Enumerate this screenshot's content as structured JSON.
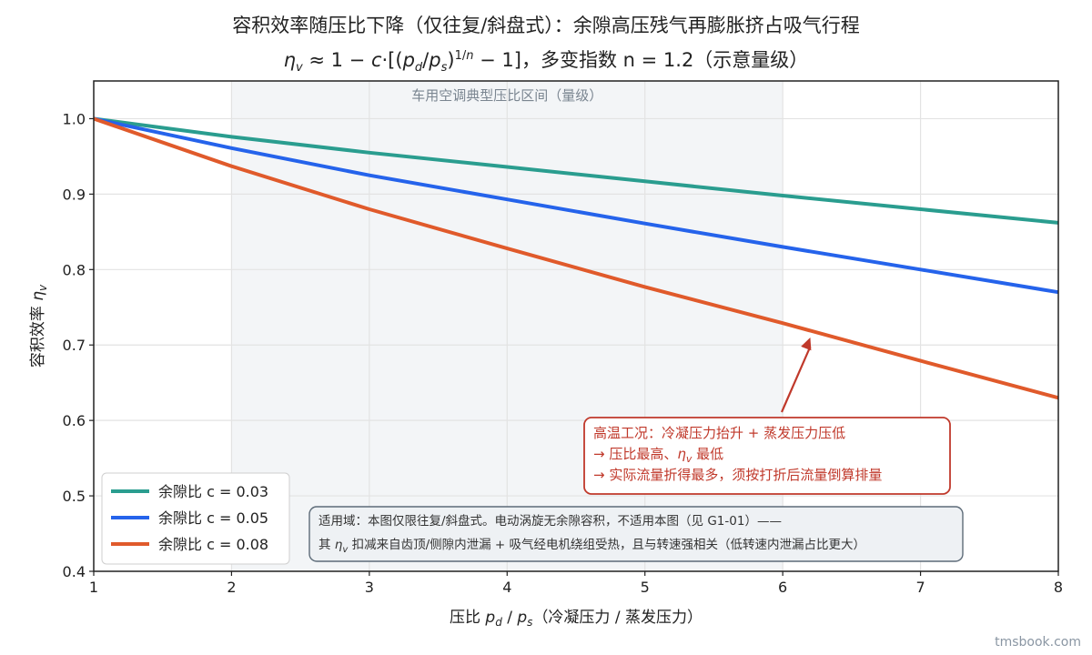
{
  "chart_data": {
    "type": "line",
    "title": "容积效率随压比下降（仅往复/斜盘式）：余隙高压残气再膨胀挤占吸气行程",
    "subtitle": "ηv ≈ 1 − c·[(pd/ps)^(1/n) − 1]，多变指数 n = 1.2（示意量级）",
    "xlabel": "压比 pd / ps（冷凝压力 / 蒸发压力）",
    "ylabel": "容积效率 ηv",
    "xlim": [
      1,
      8
    ],
    "ylim": [
      0.4,
      1.05
    ],
    "xticks": [
      1,
      2,
      3,
      4,
      5,
      6,
      7,
      8
    ],
    "yticks": [
      0.4,
      0.5,
      0.6,
      0.7,
      0.8,
      0.9,
      1.0
    ],
    "grid": true,
    "legend_position": "bottom-left",
    "polytropic_n": 1.2,
    "series": [
      {
        "name": "余隙比 c = 0.03",
        "c": 0.03,
        "color": "#2a9d8f",
        "x": [
          1,
          2,
          3,
          4,
          5,
          6,
          7,
          8
        ],
        "values": [
          1.0,
          0.976,
          0.955,
          0.936,
          0.917,
          0.898,
          0.88,
          0.862
        ]
      },
      {
        "name": "余隙比 c = 0.05",
        "c": 0.05,
        "color": "#2563eb",
        "x": [
          1,
          2,
          3,
          4,
          5,
          6,
          7,
          8
        ],
        "values": [
          1.0,
          0.961,
          0.925,
          0.893,
          0.861,
          0.83,
          0.8,
          0.77
        ]
      },
      {
        "name": "余隙比 c = 0.08",
        "c": 0.08,
        "color": "#e05a2b",
        "x": [
          1,
          2,
          3,
          4,
          5,
          6,
          7,
          8
        ],
        "values": [
          1.0,
          0.937,
          0.88,
          0.828,
          0.777,
          0.729,
          0.679,
          0.63
        ]
      }
    ],
    "shaded_region": {
      "x": [
        2,
        6
      ],
      "label": "车用空调典型压比区间（量级）",
      "color": "#e9ecf0"
    },
    "annotations": [
      {
        "lines": [
          "高温工况：冷凝压力抬升 + 蒸发压力压低",
          "→ 压比最高、ηv 最低",
          "→ 实际流量折得最多，须按打折后流量倒算排量"
        ],
        "color": "#c0392b",
        "arrow_to": {
          "x": 6.2,
          "y": 0.71
        }
      },
      {
        "lines": [
          "适用域：本图仅限往复/斜盘式。电动涡旋无余隙容积，不适用本图（见 G1-01）——",
          "其 ηv 扣减来自齿顶/侧隙内泄漏 + 吸气经电机绕组受热，且与转速强相关（低转速内泄漏占比更大）"
        ],
        "color": "#333333"
      }
    ]
  },
  "watermark": "tmsbook.com"
}
